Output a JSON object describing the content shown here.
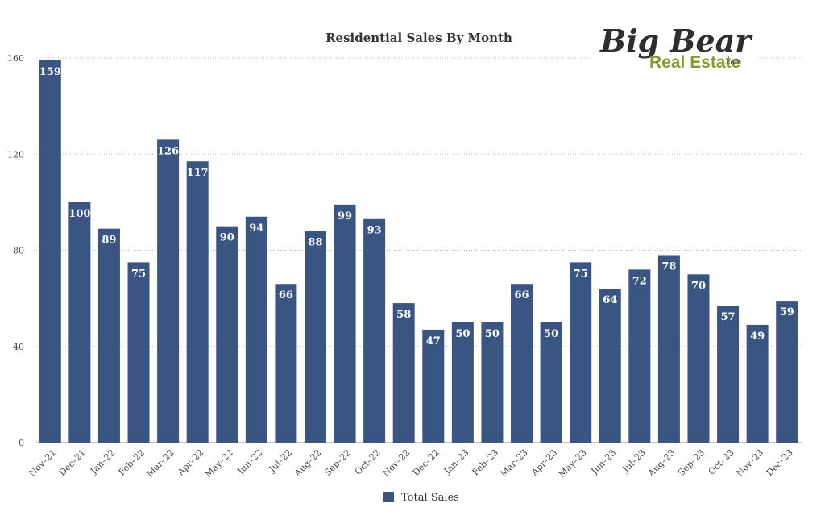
{
  "logo": {
    "line1": "Big Bear",
    "line2": "Real Estate",
    "suffix": ".com"
  },
  "chart_data": {
    "type": "bar",
    "title": "Residential Sales By Month",
    "xlabel": "",
    "ylabel": "",
    "ylim": [
      0,
      160
    ],
    "yticks": [
      0,
      40,
      80,
      120,
      160
    ],
    "grid": true,
    "legend_position": "bottom",
    "bar_color": "#3b5583",
    "categories": [
      "Nov–21",
      "Dec–21",
      "Jan–22",
      "Feb–22",
      "Mar–22",
      "Apr–22",
      "May–22",
      "Jun–22",
      "Jul–22",
      "Aug–22",
      "Sep–22",
      "Oct–22",
      "Nov–22",
      "Dec–22",
      "Jan–23",
      "Feb–23",
      "Mar–23",
      "Apr–23",
      "May–23",
      "Jun–23",
      "Jul–23",
      "Aug–23",
      "Sep–23",
      "Oct–23",
      "Nov–23",
      "Dec–23"
    ],
    "series": [
      {
        "name": "Total Sales",
        "values": [
          159,
          100,
          89,
          75,
          126,
          117,
          90,
          94,
          66,
          88,
          99,
          93,
          58,
          47,
          50,
          50,
          66,
          50,
          75,
          64,
          72,
          78,
          70,
          57,
          49,
          59
        ]
      }
    ]
  }
}
